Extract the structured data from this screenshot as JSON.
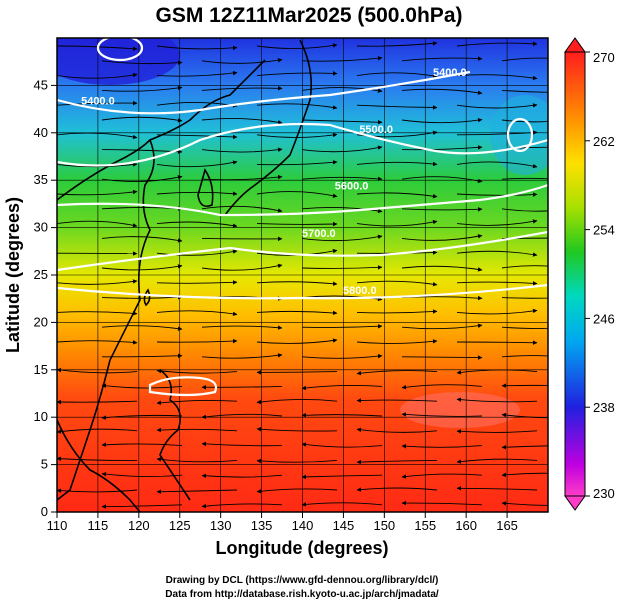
{
  "chart_data": {
    "type": "heatmap",
    "title": "GSM 12Z11Mar2025 (500.0hPa)",
    "xlabel": "Longitude (degrees)",
    "ylabel": "Latitude  (degrees)",
    "xlim": [
      110,
      170
    ],
    "ylim": [
      0,
      50
    ],
    "x_ticks": [
      110,
      115,
      120,
      125,
      130,
      135,
      140,
      145,
      150,
      155,
      160,
      165
    ],
    "y_ticks": [
      0,
      5,
      10,
      15,
      20,
      25,
      30,
      35,
      40,
      45
    ],
    "colorbar": {
      "min": 230,
      "max": 270,
      "ticks": [
        230,
        238,
        246,
        254,
        262,
        270
      ]
    },
    "contour_labels": [
      {
        "text": "5400.0",
        "lon": 115,
        "lat": 43
      },
      {
        "text": "5400.0",
        "lon": 158,
        "lat": 46
      },
      {
        "text": "5500.0",
        "lon": 149,
        "lat": 40
      },
      {
        "text": "5600.0",
        "lon": 146,
        "lat": 34
      },
      {
        "text": "5700.0",
        "lon": 142,
        "lat": 29
      },
      {
        "text": "5800.0",
        "lon": 147,
        "lat": 23
      }
    ],
    "field_notes": "temperature (K) shaded, geopotential height contours (white), wind streamlines (black)"
  },
  "credits": {
    "line1": "Drawing by DCL (https://www.gfd-dennou.org/library/dcl/)",
    "line2": "Data from http://database.rish.kyoto-u.ac.jp/arch/jmadata/"
  },
  "colors": {
    "red": "#ff2800",
    "orange": "#ff8c00",
    "yellow": "#f0f000",
    "green": "#28c828",
    "cyan": "#00c8e6",
    "blue": "#1e3cff",
    "magenta": "#dc00dc"
  }
}
